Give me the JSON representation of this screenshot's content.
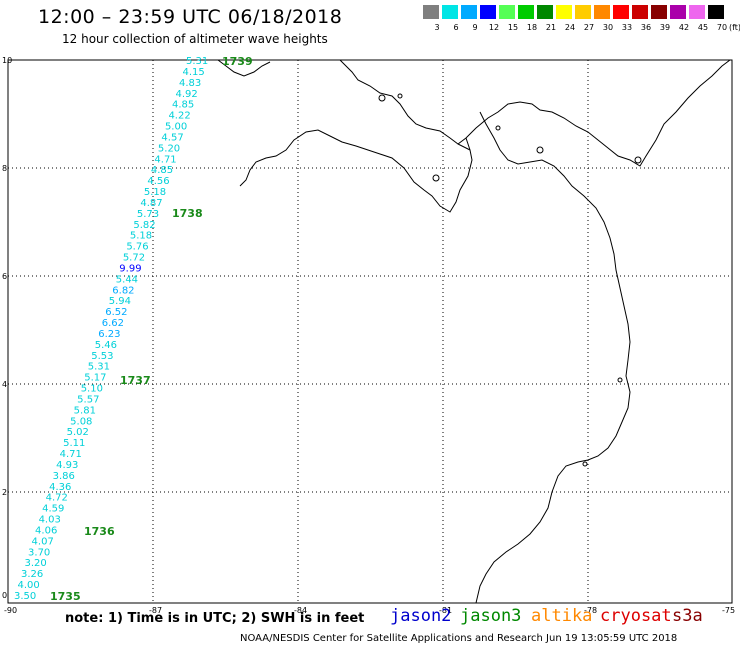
{
  "title": "12:00 – 23:59 UTC 06/18/2018",
  "subtitle": "12 hour collection of altimeter wave heights",
  "legend": {
    "unit": "(ft)",
    "labels": [
      "3",
      "6",
      "9",
      "12",
      "15",
      "18",
      "21",
      "24",
      "27",
      "30",
      "33",
      "36",
      "39",
      "42",
      "45",
      "70"
    ],
    "colors": [
      "#7f7f7f",
      "#00e5e5",
      "#00aaff",
      "#0000ff",
      "#55ff55",
      "#00cc00",
      "#008800",
      "#ffff00",
      "#ffcc00",
      "#ff8800",
      "#ff0000",
      "#cc0000",
      "#880000",
      "#aa00aa",
      "#ee66ee",
      "#000000"
    ]
  },
  "axes": {
    "x_ticks": [
      "-90",
      "-87",
      "-84",
      "-81",
      "-78",
      "-75"
    ],
    "y_ticks": [
      "0",
      "2",
      "4",
      "6",
      "8",
      "10"
    ]
  },
  "track": {
    "wave_heights": [
      "3.50",
      "4.00",
      "3.26",
      "3.20",
      "3.70",
      "4.07",
      "4.06",
      "4.03",
      "4.59",
      "4.72",
      "4.36",
      "3.86",
      "4.93",
      "4.71",
      "5.11",
      "5.02",
      "5.08",
      "5.81",
      "5.57",
      "5.10",
      "5.17",
      "5.31",
      "5.53",
      "5.46",
      "6.23",
      "6.62",
      "6.52",
      "5.94",
      "6.82",
      "5.44",
      "9.99",
      "5.72",
      "5.76",
      "5.18",
      "5.82",
      "5.73",
      "4.87",
      "5.18",
      "4.56",
      "4.85",
      "4.71",
      "5.20",
      "4.57",
      "5.00",
      "4.22",
      "4.85",
      "4.92",
      "4.83",
      "4.15",
      "5.31"
    ],
    "time_labels": [
      "1735",
      "1736",
      "1737",
      "1738",
      "1739"
    ]
  },
  "note": "note: 1) Time is in UTC; 2) SWH is in feet",
  "satellites": [
    {
      "name": "jason2",
      "color": "#0000cc"
    },
    {
      "name": "jason3",
      "color": "#008800"
    },
    {
      "name": "altika",
      "color": "#ff8800"
    },
    {
      "name": "cryosat",
      "color": "#dd0000"
    },
    {
      "name": "s3a",
      "color": "#880000"
    }
  ],
  "credit": "NOAA/NESDIS Center for Satellite Applications and Research    Jun 19 13:05:59 UTC 2018"
}
